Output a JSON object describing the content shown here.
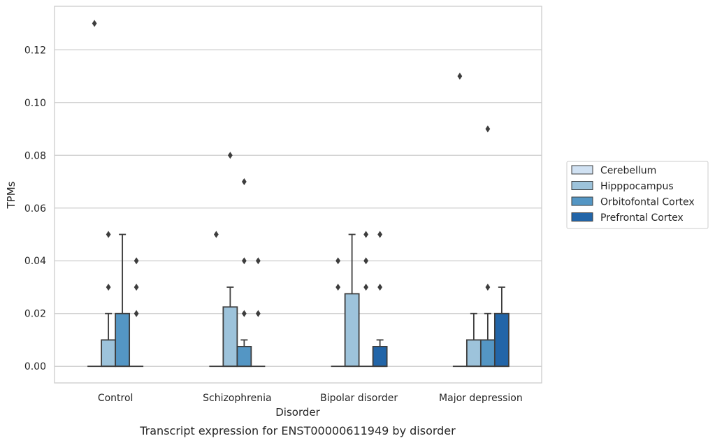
{
  "chart_data": {
    "type": "box",
    "caption": "Transcript expression for ENST00000611949 by disorder",
    "xlabel": "Disorder",
    "ylabel": "TPMs",
    "ylim": [
      -0.0063,
      0.1365
    ],
    "yticks": [
      "0.00",
      "0.02",
      "0.04",
      "0.06",
      "0.08",
      "0.10",
      "0.12"
    ],
    "ytick_values": [
      0,
      0.02,
      0.04,
      0.06,
      0.08,
      0.1,
      0.12
    ],
    "grid": "horizontal",
    "legend_position": "right",
    "categories": [
      "Control",
      "Schizophrenia",
      "Bipolar disorder",
      "Major depression"
    ],
    "series": [
      {
        "name": "Cerebellum",
        "color": "#d0e1f2",
        "boxes": [
          {
            "q1": 0,
            "median": 0,
            "q3": 0,
            "whisker_low": 0,
            "whisker_high": 0,
            "outliers": [
              0.13
            ]
          },
          {
            "q1": 0,
            "median": 0,
            "q3": 0,
            "whisker_low": 0,
            "whisker_high": 0,
            "outliers": [
              0.05
            ]
          },
          {
            "q1": 0,
            "median": 0,
            "q3": 0,
            "whisker_low": 0,
            "whisker_high": 0,
            "outliers": [
              0.03,
              0.04
            ]
          },
          {
            "q1": 0,
            "median": 0,
            "q3": 0,
            "whisker_low": 0,
            "whisker_high": 0,
            "outliers": [
              0.11
            ]
          }
        ]
      },
      {
        "name": "Hipppocampus",
        "color": "#9dc3db",
        "boxes": [
          {
            "q1": 0,
            "median": 0,
            "q3": 0.01,
            "whisker_low": 0,
            "whisker_high": 0.02,
            "outliers": [
              0.03,
              0.05
            ]
          },
          {
            "q1": 0,
            "median": 0,
            "q3": 0.0225,
            "whisker_low": 0,
            "whisker_high": 0.03,
            "outliers": [
              0.08
            ]
          },
          {
            "q1": 0,
            "median": 0,
            "q3": 0.0275,
            "whisker_low": 0,
            "whisker_high": 0.05,
            "outliers": []
          },
          {
            "q1": 0,
            "median": 0,
            "q3": 0.01,
            "whisker_low": 0,
            "whisker_high": 0.02,
            "outliers": []
          }
        ]
      },
      {
        "name": "Orbitofontal Cortex",
        "color": "#5496c4",
        "boxes": [
          {
            "q1": 0,
            "median": 0,
            "q3": 0.02,
            "whisker_low": 0,
            "whisker_high": 0.05,
            "outliers": []
          },
          {
            "q1": 0,
            "median": 0,
            "q3": 0.0075,
            "whisker_low": 0,
            "whisker_high": 0.01,
            "outliers": [
              0.02,
              0.04,
              0.07
            ]
          },
          {
            "q1": 0,
            "median": 0,
            "q3": 0,
            "whisker_low": 0,
            "whisker_high": 0,
            "outliers": [
              0.03,
              0.04,
              0.05
            ]
          },
          {
            "q1": 0,
            "median": 0,
            "q3": 0.01,
            "whisker_low": 0,
            "whisker_high": 0.02,
            "outliers": [
              0.03,
              0.09
            ]
          }
        ]
      },
      {
        "name": "Prefrontal Cortex",
        "color": "#2265a8",
        "boxes": [
          {
            "q1": 0,
            "median": 0,
            "q3": 0,
            "whisker_low": 0,
            "whisker_high": 0,
            "outliers": [
              0.02,
              0.03,
              0.04
            ]
          },
          {
            "q1": 0,
            "median": 0,
            "q3": 0,
            "whisker_low": 0,
            "whisker_high": 0,
            "outliers": [
              0.02,
              0.04
            ]
          },
          {
            "q1": 0,
            "median": 0,
            "q3": 0.0075,
            "whisker_low": 0,
            "whisker_high": 0.01,
            "outliers": [
              0.03,
              0.05
            ]
          },
          {
            "q1": 0,
            "median": 0,
            "q3": 0.02,
            "whisker_low": 0,
            "whisker_high": 0.03,
            "outliers": []
          }
        ]
      }
    ]
  }
}
